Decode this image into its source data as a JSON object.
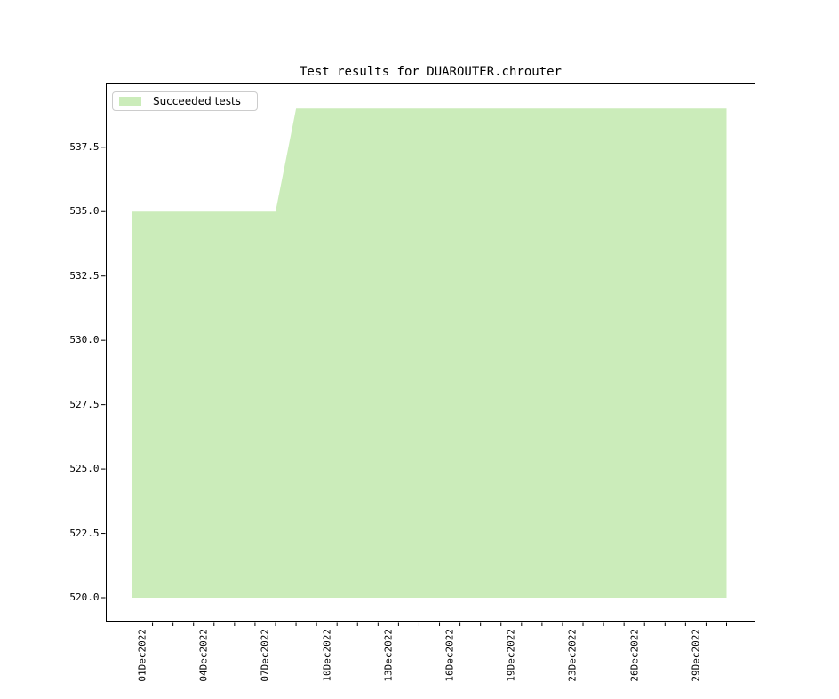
{
  "figure": {
    "background_color": "#ffffff",
    "spine_color": "#000000",
    "text_color": "#000000"
  },
  "chart_data": {
    "type": "area",
    "title": "Test results for DUAROUTER.chrouter",
    "xlabel": "",
    "ylabel": "",
    "grid": false,
    "legend_position": "upper left",
    "legend": [
      "Succeeded tests"
    ],
    "ylim": [
      519.05,
      539.95
    ],
    "y_ticks": [
      520.0,
      522.5,
      525.0,
      527.5,
      530.0,
      532.5,
      535.0,
      537.5
    ],
    "y_tick_labels": [
      "520.0",
      "522.5",
      "525.0",
      "527.5",
      "530.0",
      "532.5",
      "535.0",
      "537.5"
    ],
    "x_range": [
      "01Dec2022",
      "31Dec2022"
    ],
    "x_minor_tick_count": 30,
    "x_major_ticks": [
      {
        "pos": 0,
        "label": "01Dec2022"
      },
      {
        "pos": 3,
        "label": "04Dec2022"
      },
      {
        "pos": 6,
        "label": "07Dec2022"
      },
      {
        "pos": 9,
        "label": "10Dec2022"
      },
      {
        "pos": 12,
        "label": "13Dec2022"
      },
      {
        "pos": 15,
        "label": "16Dec2022"
      },
      {
        "pos": 18,
        "label": "19Dec2022"
      },
      {
        "pos": 21,
        "label": "23Dec2022"
      },
      {
        "pos": 24,
        "label": "26Dec2022"
      },
      {
        "pos": 27,
        "label": "29Dec2022"
      }
    ],
    "series": [
      {
        "name": "Succeeded tests",
        "color": "#cbecba",
        "baseline": 520,
        "segments": [
          {
            "from": "01Dec2022",
            "from_pos": 0,
            "to": "08Dec2022",
            "to_pos": 7,
            "value": 535
          },
          {
            "from": "09Dec2022",
            "from_pos": 8,
            "to": "31Dec2022",
            "to_pos": 29,
            "value": 539
          }
        ]
      }
    ]
  }
}
